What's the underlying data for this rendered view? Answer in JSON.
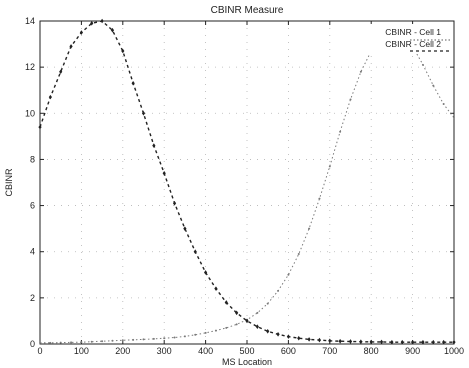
{
  "chart_data": {
    "type": "line",
    "title": "CBINR Measure",
    "xlabel": "MS Location",
    "ylabel": "CBINR",
    "xlim": [
      0,
      1000
    ],
    "ylim": [
      0,
      14
    ],
    "xticks": [
      0,
      100,
      200,
      300,
      400,
      500,
      600,
      700,
      800,
      900,
      1000
    ],
    "yticks": [
      0,
      2,
      4,
      6,
      8,
      10,
      12,
      14
    ],
    "grid": true,
    "legend_position": "top-right",
    "series": [
      {
        "name": "CBINR - Cell 1",
        "color": "#7a7a7a",
        "x": [
          0,
          25,
          50,
          75,
          100,
          125,
          150,
          175,
          200,
          225,
          250,
          275,
          300,
          325,
          350,
          375,
          400,
          425,
          450,
          475,
          500,
          525,
          550,
          575,
          600,
          625,
          650,
          675,
          700,
          725,
          750,
          775,
          800,
          825,
          850,
          875,
          900,
          925,
          950,
          975,
          1000
        ],
        "y": [
          0.05,
          0.05,
          0.06,
          0.07,
          0.08,
          0.1,
          0.12,
          0.14,
          0.16,
          0.18,
          0.2,
          0.22,
          0.25,
          0.28,
          0.33,
          0.4,
          0.48,
          0.58,
          0.7,
          0.85,
          1.05,
          1.35,
          1.75,
          2.3,
          3.0,
          3.9,
          5.0,
          6.3,
          7.7,
          9.2,
          10.6,
          11.8,
          12.7,
          13.3,
          13.6,
          13.4,
          12.9,
          12.1,
          11.2,
          10.4,
          9.8
        ]
      },
      {
        "name": "CBINR - Cell 2",
        "color": "#222222",
        "x": [
          0,
          25,
          50,
          75,
          100,
          125,
          150,
          175,
          200,
          225,
          250,
          275,
          300,
          325,
          350,
          375,
          400,
          425,
          450,
          475,
          500,
          525,
          550,
          575,
          600,
          625,
          650,
          675,
          700,
          725,
          750,
          775,
          800,
          825,
          850,
          875,
          900,
          925,
          950,
          975,
          1000
        ],
        "y": [
          9.4,
          10.7,
          11.8,
          12.9,
          13.5,
          13.9,
          14.0,
          13.6,
          12.7,
          11.3,
          10.0,
          8.6,
          7.4,
          6.1,
          5.0,
          4.0,
          3.1,
          2.4,
          1.8,
          1.35,
          1.0,
          0.75,
          0.55,
          0.42,
          0.32,
          0.25,
          0.2,
          0.17,
          0.14,
          0.12,
          0.11,
          0.1,
          0.09,
          0.09,
          0.08,
          0.08,
          0.08,
          0.08,
          0.08,
          0.08,
          0.08
        ]
      }
    ]
  }
}
